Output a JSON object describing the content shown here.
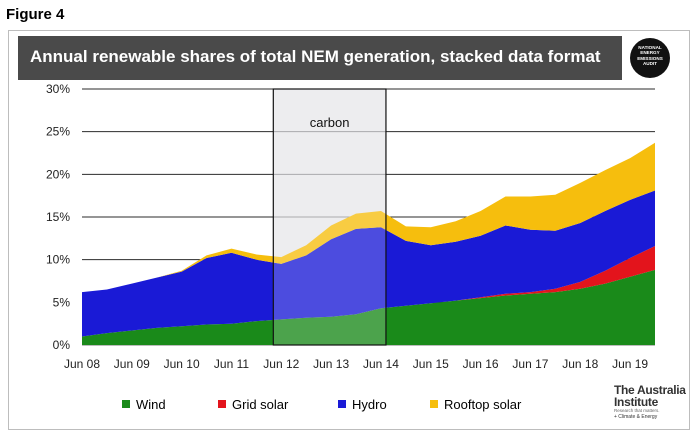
{
  "figure_label": "Figure 4",
  "badge": {
    "text": "NATIONAL\nENERGY\nEMISSIONS\nAUDIT"
  },
  "logo": {
    "name": "The Australia Institute",
    "tagline": "Research that matters.",
    "sub": "+ Climate & Energy"
  },
  "colors": {
    "wind": "#1a8a1a",
    "grid_solar": "#e3141c",
    "hydro": "#1a1ad6",
    "rooftop_solar": "#f6be0d",
    "banner": "#4a4a4a",
    "highlight_fill": "#d9d9de"
  },
  "chart_data": {
    "type": "area",
    "stacked": true,
    "title": "Annual renewable shares of total NEM generation, stacked data format",
    "x": [
      "Jun 08",
      "Dec 08",
      "Jun 09",
      "Dec 09",
      "Jun 10",
      "Dec 10",
      "Jun 11",
      "Dec 11",
      "Jun 12",
      "Dec 12",
      "Jun 13",
      "Dec 13",
      "Jun 14",
      "Dec 14",
      "Jun 15",
      "Dec 15",
      "Jun 16",
      "Dec 16",
      "Jun 17",
      "Dec 17",
      "Jun 18",
      "Dec 18",
      "Jun 19",
      "Dec 19"
    ],
    "x_tick_labels": [
      "Jun 08",
      "Jun 09",
      "Jun 10",
      "Jun 11",
      "Jun 12",
      "Jun 13",
      "Jun 14",
      "Jun 15",
      "Jun 16",
      "Jun 17",
      "Jun 18",
      "Jun 19"
    ],
    "y_tick_labels": [
      "0%",
      "5%",
      "10%",
      "15%",
      "20%",
      "25%",
      "30%"
    ],
    "ylim": [
      0,
      30
    ],
    "y_unit": "%",
    "grid": "horizontal",
    "legend_position": "bottom",
    "series": [
      {
        "name": "Wind",
        "values": [
          1.0,
          1.4,
          1.7,
          2.0,
          2.2,
          2.4,
          2.5,
          2.8,
          3.0,
          3.2,
          3.3,
          3.6,
          4.3,
          4.6,
          4.9,
          5.2,
          5.5,
          5.8,
          6.0,
          6.2,
          6.6,
          7.2,
          8.0,
          8.8
        ]
      },
      {
        "name": "Grid solar",
        "values": [
          0,
          0,
          0,
          0,
          0,
          0,
          0,
          0,
          0,
          0,
          0,
          0,
          0,
          0,
          0,
          0,
          0.1,
          0.2,
          0.2,
          0.4,
          0.8,
          1.5,
          2.2,
          2.8
        ]
      },
      {
        "name": "Hydro",
        "values": [
          5.2,
          5.1,
          5.5,
          5.9,
          6.4,
          7.8,
          8.3,
          7.2,
          6.5,
          7.3,
          9.1,
          10.0,
          9.5,
          7.6,
          6.8,
          6.9,
          7.2,
          8.0,
          7.3,
          6.8,
          6.9,
          7.0,
          6.8,
          6.5
        ]
      },
      {
        "name": "Rooftop solar",
        "values": [
          0,
          0,
          0,
          0,
          0.1,
          0.3,
          0.5,
          0.6,
          0.8,
          1.2,
          1.6,
          1.8,
          1.9,
          1.7,
          2.1,
          2.4,
          2.9,
          3.4,
          3.9,
          4.2,
          4.7,
          4.8,
          4.9,
          5.6
        ]
      }
    ],
    "annotations": [
      {
        "label": "carbon",
        "x_from": "Jun 12",
        "x_to": "Jun 14"
      }
    ]
  }
}
